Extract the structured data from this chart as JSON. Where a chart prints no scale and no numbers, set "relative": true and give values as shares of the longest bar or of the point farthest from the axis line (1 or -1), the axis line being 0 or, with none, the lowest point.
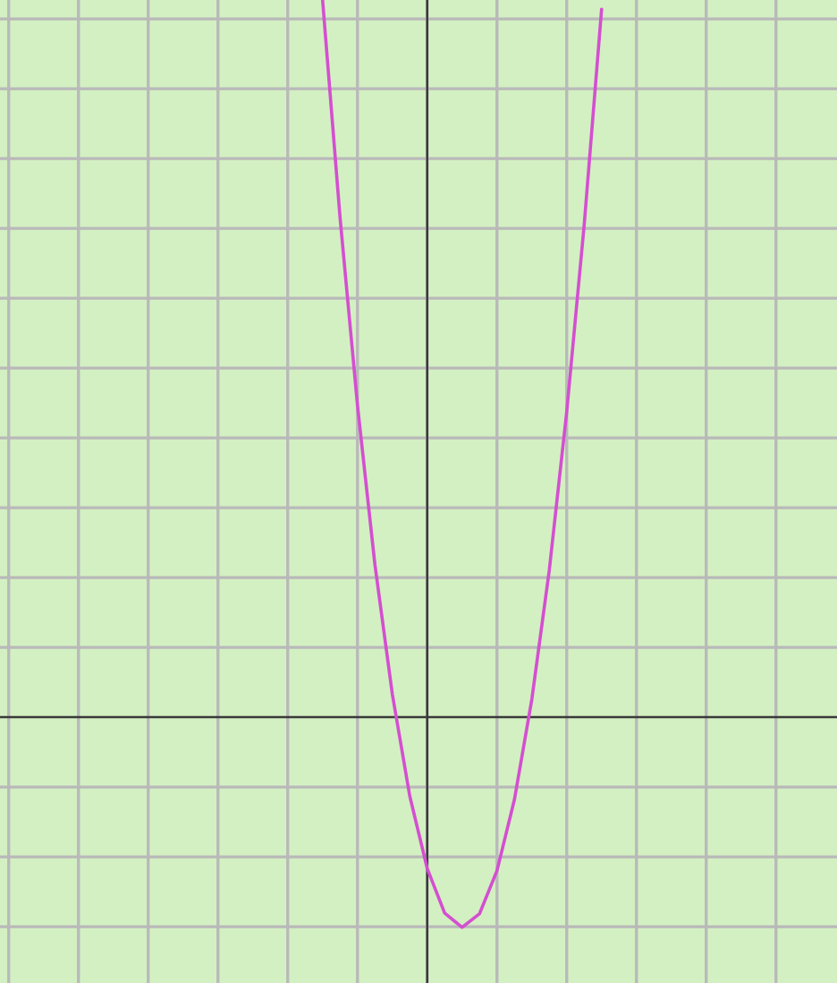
{
  "chart_data": {
    "type": "line",
    "relative": true,
    "grid": true,
    "color": "#d44fd0",
    "categories": [
      null,
      null,
      null,
      null,
      null,
      null,
      null,
      null,
      null,
      null,
      null,
      null,
      null,
      null,
      null,
      null,
      null,
      null,
      null,
      null,
      null,
      null,
      null,
      null,
      null,
      null,
      null,
      null,
      null,
      null,
      null,
      null,
      null,
      null,
      null,
      null,
      null,
      null,
      null,
      null,
      null,
      null,
      null,
      null,
      null,
      null,
      null,
      null
    ],
    "values": [
      null,
      null,
      null,
      null,
      null,
      null,
      null,
      null,
      null,
      null,
      null,
      null,
      null,
      null,
      null,
      null,
      null,
      null,
      1.0,
      0.697,
      0.435,
      0.213,
      0.032,
      -0.11,
      -0.211,
      -0.273,
      -0.293,
      -0.274,
      -0.214,
      -0.115,
      0.025,
      0.205,
      0.426,
      0.686,
      0.987,
      null,
      null,
      null,
      null,
      null,
      null,
      null,
      null,
      null,
      null,
      null,
      null,
      null
    ]
  }
}
